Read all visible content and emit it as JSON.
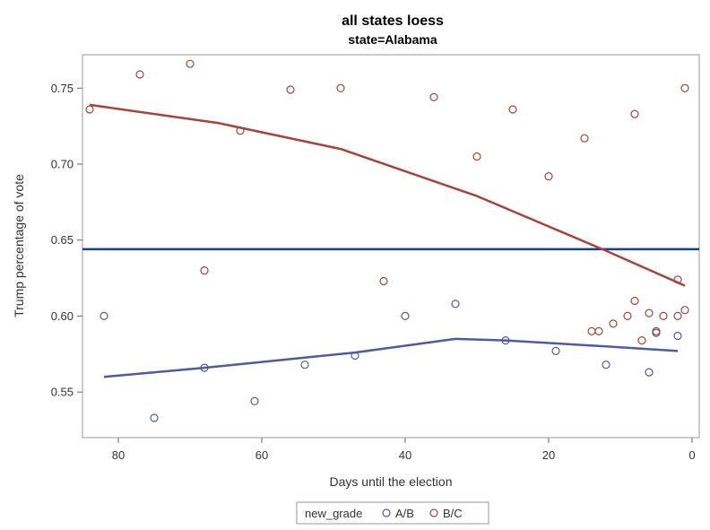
{
  "chart_data": {
    "type": "scatter",
    "title": "all states loess",
    "subtitle": "state=Alabama",
    "xlabel": "Days until the election",
    "ylabel": "Trump percentage of vote",
    "x_reversed": true,
    "xlim": [
      85,
      -1
    ],
    "ylim": [
      0.52,
      0.772
    ],
    "x_ticks": [
      80,
      60,
      40,
      20,
      0
    ],
    "y_ticks": [
      0.55,
      0.6,
      0.65,
      0.7,
      0.75
    ],
    "x_tick_labels": [
      "80",
      "60",
      "40",
      "20",
      "0"
    ],
    "y_tick_labels": [
      "0.55",
      "0.60",
      "0.65",
      "0.70",
      "0.75"
    ],
    "grid": false,
    "legend": {
      "title": "new_grade",
      "position": "bottom",
      "entries": [
        "A/B",
        "B/C"
      ]
    },
    "reference_line": {
      "orientation": "horizontal",
      "y": 0.644,
      "color": "#143f8f"
    },
    "colors": {
      "A/B": "#4e5ba0",
      "B/C": "#a8433a"
    },
    "series": [
      {
        "name": "A/B",
        "points": [
          {
            "x": 82,
            "y": 0.6
          },
          {
            "x": 75,
            "y": 0.533
          },
          {
            "x": 68,
            "y": 0.566
          },
          {
            "x": 61,
            "y": 0.544
          },
          {
            "x": 54,
            "y": 0.568
          },
          {
            "x": 47,
            "y": 0.574
          },
          {
            "x": 40,
            "y": 0.6
          },
          {
            "x": 33,
            "y": 0.608
          },
          {
            "x": 26,
            "y": 0.584
          },
          {
            "x": 19,
            "y": 0.577
          },
          {
            "x": 12,
            "y": 0.568
          },
          {
            "x": 6,
            "y": 0.563
          },
          {
            "x": 5,
            "y": 0.589
          },
          {
            "x": 2,
            "y": 0.587
          }
        ],
        "loess": [
          {
            "x": 82,
            "y": 0.56
          },
          {
            "x": 68,
            "y": 0.566
          },
          {
            "x": 47,
            "y": 0.576
          },
          {
            "x": 33,
            "y": 0.585
          },
          {
            "x": 26,
            "y": 0.584
          },
          {
            "x": 12,
            "y": 0.58
          },
          {
            "x": 2,
            "y": 0.577
          }
        ]
      },
      {
        "name": "B/C",
        "points": [
          {
            "x": 84,
            "y": 0.736
          },
          {
            "x": 77,
            "y": 0.759
          },
          {
            "x": 70,
            "y": 0.766
          },
          {
            "x": 68,
            "y": 0.63
          },
          {
            "x": 63,
            "y": 0.722
          },
          {
            "x": 56,
            "y": 0.749
          },
          {
            "x": 49,
            "y": 0.75
          },
          {
            "x": 43,
            "y": 0.623
          },
          {
            "x": 36,
            "y": 0.744
          },
          {
            "x": 30,
            "y": 0.705
          },
          {
            "x": 25,
            "y": 0.736
          },
          {
            "x": 20,
            "y": 0.692
          },
          {
            "x": 15,
            "y": 0.717
          },
          {
            "x": 14,
            "y": 0.59
          },
          {
            "x": 13,
            "y": 0.59
          },
          {
            "x": 11,
            "y": 0.595
          },
          {
            "x": 9,
            "y": 0.6
          },
          {
            "x": 8,
            "y": 0.733
          },
          {
            "x": 8,
            "y": 0.61
          },
          {
            "x": 7,
            "y": 0.584
          },
          {
            "x": 6,
            "y": 0.602
          },
          {
            "x": 5,
            "y": 0.59
          },
          {
            "x": 4,
            "y": 0.6
          },
          {
            "x": 2,
            "y": 0.624
          },
          {
            "x": 2,
            "y": 0.6
          },
          {
            "x": 1,
            "y": 0.604
          },
          {
            "x": 1,
            "y": 0.75
          }
        ],
        "loess": [
          {
            "x": 84,
            "y": 0.739
          },
          {
            "x": 66,
            "y": 0.727
          },
          {
            "x": 49,
            "y": 0.71
          },
          {
            "x": 30,
            "y": 0.679
          },
          {
            "x": 20,
            "y": 0.659
          },
          {
            "x": 12,
            "y": 0.643
          },
          {
            "x": 1,
            "y": 0.62
          }
        ]
      }
    ]
  }
}
